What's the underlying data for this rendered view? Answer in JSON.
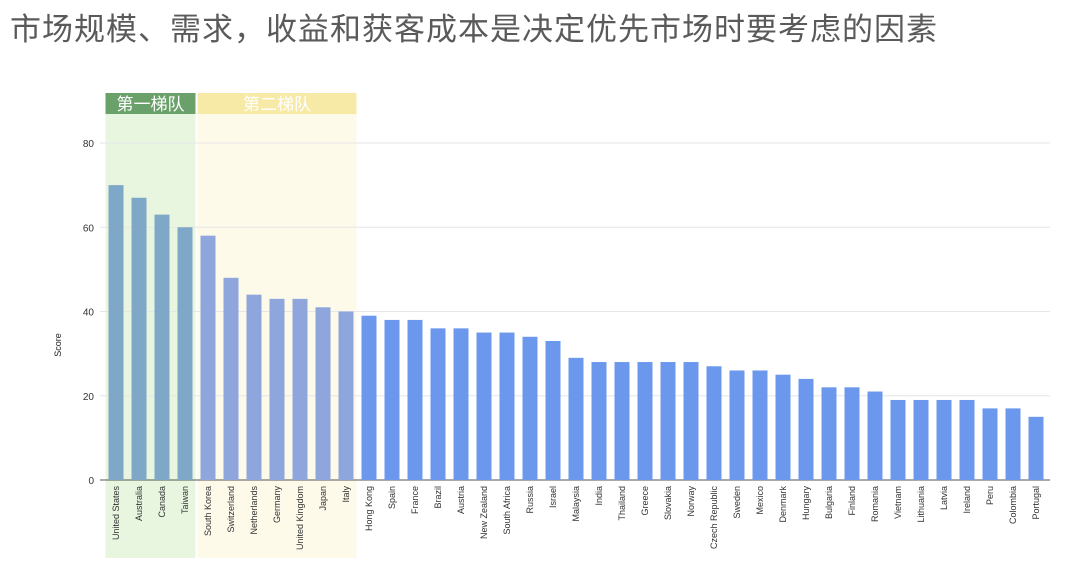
{
  "title": "市场规模、需求，收益和获客成本是决定优先市场时要考虑的因素",
  "tiers": [
    {
      "label": "第一梯队",
      "start": 0,
      "end": 3,
      "band_color": "#e8f6e0",
      "header_color": "#6aa06a"
    },
    {
      "label": "第二梯队",
      "start": 4,
      "end": 10,
      "band_color": "#fdfaea",
      "header_color": "#f7e9a6"
    }
  ],
  "chart_data": {
    "type": "bar",
    "xlabel": "",
    "ylabel": "Score",
    "ylim": [
      0,
      80
    ],
    "yticks": [
      0,
      20,
      40,
      60,
      80
    ],
    "grid": true,
    "categories": [
      "United States",
      "Australia",
      "Canada",
      "Taiwan",
      "South Korea",
      "Switzerland",
      "Netherlands",
      "Germany",
      "United Kingdom",
      "Japan",
      "Italy",
      "Hong Kong",
      "Spain",
      "France",
      "Brazil",
      "Austria",
      "New Zealand",
      "South Africa",
      "Russia",
      "Israel",
      "Malaysia",
      "India",
      "Thailand",
      "Greece",
      "Slovakia",
      "Norway",
      "Czech Republic",
      "Sweden",
      "Mexico",
      "Denmark",
      "Hungary",
      "Bulgaria",
      "Finland",
      "Romania",
      "Vietnam",
      "Lithuania",
      "Latvia",
      "Ireland",
      "Peru",
      "Colombia",
      "Portugal"
    ],
    "values": [
      70,
      67,
      63,
      60,
      58,
      48,
      44,
      43,
      43,
      41,
      40,
      39,
      38,
      38,
      36,
      36,
      35,
      35,
      34,
      33,
      29,
      28,
      28,
      28,
      28,
      28,
      27,
      26,
      26,
      25,
      24,
      22,
      22,
      21,
      19,
      19,
      19,
      19,
      17,
      17,
      15
    ],
    "colors": {
      "tier1": "#7fa8c8",
      "tier2": "#8ea6dc",
      "rest": "#6b98ec"
    }
  }
}
